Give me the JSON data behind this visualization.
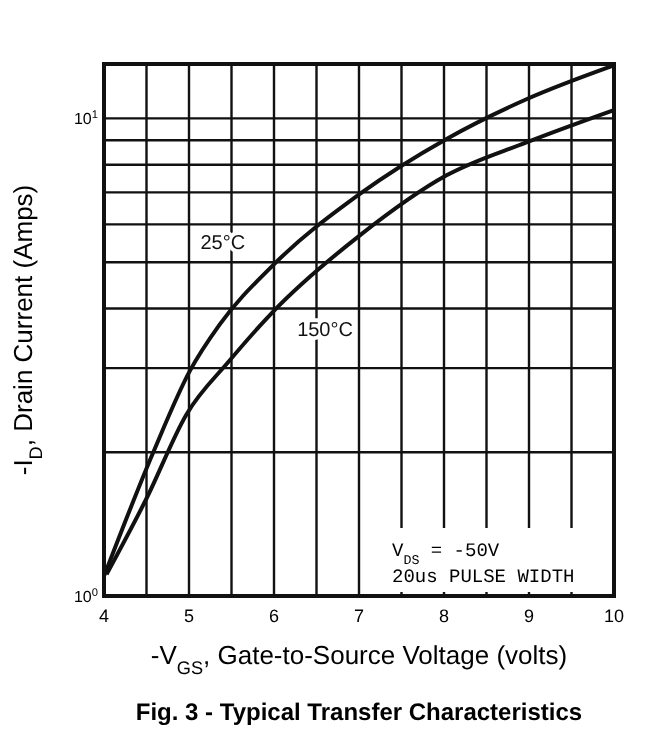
{
  "chart_data": {
    "type": "line",
    "title": "Fig. 3 - Typical Transfer Characteristics",
    "xlabel": "-V$_{GS}$, Gate-to-Source Voltage (volts)",
    "ylabel": "-I$_{D}$, Drain Current (Amps)",
    "annotations": [
      "V$_{DS}$ = -50V",
      "20us PULSE WIDTH"
    ],
    "series": [
      {
        "name": "25°C",
        "color": "#111111",
        "x": [
          4.0,
          4.58,
          5.01,
          5.36,
          5.99,
          7.01,
          8.03,
          8.97,
          9.99
        ],
        "values": [
          1.1,
          2.0,
          2.96,
          3.7,
          4.93,
          6.95,
          9.06,
          10.97,
          12.9
        ]
      },
      {
        "name": "150°C",
        "color": "#111111",
        "x": [
          4.03,
          4.5,
          4.97,
          5.47,
          5.99,
          7.01,
          8.03,
          8.97,
          9.99
        ],
        "values": [
          1.11,
          1.6,
          2.4,
          3.1,
          3.94,
          5.69,
          7.6,
          8.91,
          10.4
        ]
      }
    ],
    "xlim": [
      4,
      10
    ],
    "ylim": [
      1,
      13
    ],
    "log": "y",
    "grid": true,
    "marker": "none",
    "line_style": "solid",
    "xticks": [
      4,
      {
        "value": 4.5,
        "label": null
      },
      5,
      {
        "value": 5.5,
        "label": null
      },
      6,
      {
        "value": 6.5,
        "label": null
      },
      7,
      {
        "value": 7.5,
        "label": null
      },
      8,
      {
        "value": 8.5,
        "label": null
      },
      9,
      {
        "value": 9.5,
        "label": null
      },
      10
    ],
    "yticks": [
      {
        "value": 1,
        "label": "10$^{0}$"
      },
      {
        "value": 2,
        "label": null
      },
      {
        "value": 3,
        "label": null
      },
      {
        "value": 4,
        "label": null
      },
      {
        "value": 5,
        "label": null
      },
      {
        "value": 6,
        "label": null
      },
      {
        "value": 7,
        "label": null
      },
      {
        "value": 8,
        "label": null
      },
      {
        "value": 9,
        "label": null
      },
      {
        "value": 10,
        "label": "10$^{1}$"
      }
    ]
  }
}
